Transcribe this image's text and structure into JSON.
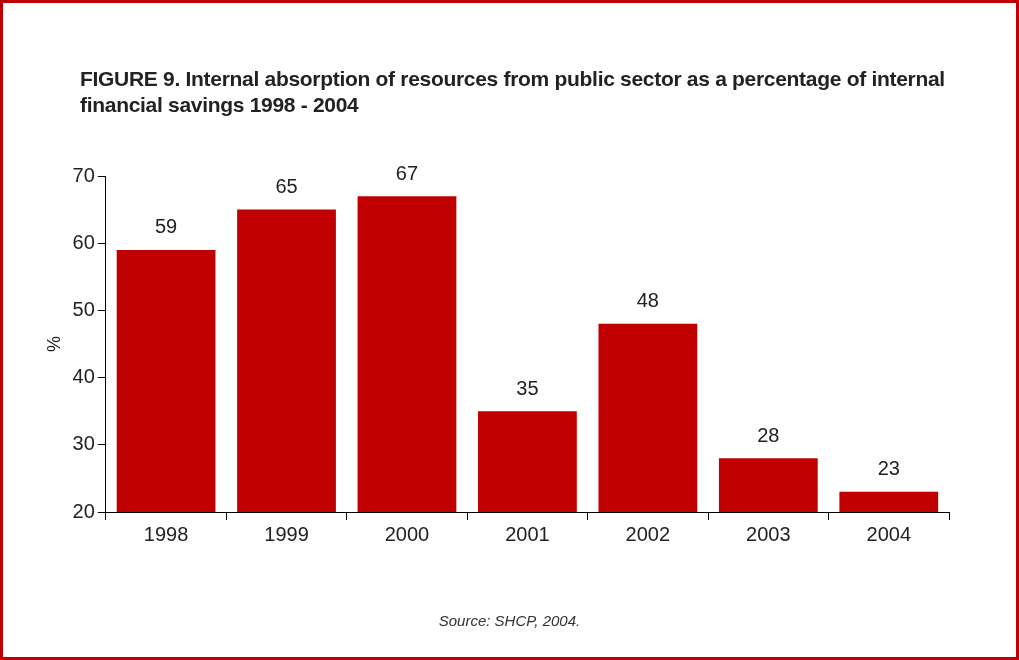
{
  "chart_data": {
    "type": "bar",
    "title": "FIGURE 9. Internal absorption of resources from public sector as a percentage of internal financial savings 1998 - 2004",
    "ylabel": "%",
    "categories": [
      "1998",
      "1999",
      "2000",
      "2001",
      "2002",
      "2003",
      "2004"
    ],
    "values": [
      59,
      65,
      67,
      35,
      48,
      28,
      23
    ],
    "color": "#c00000",
    "ylim": [
      20,
      70
    ],
    "yticks": [
      20,
      30,
      40,
      50,
      60,
      70
    ],
    "grid": false,
    "legend": false,
    "data_labels": true,
    "annotations": [
      "Source: SHCP, 2004."
    ]
  }
}
